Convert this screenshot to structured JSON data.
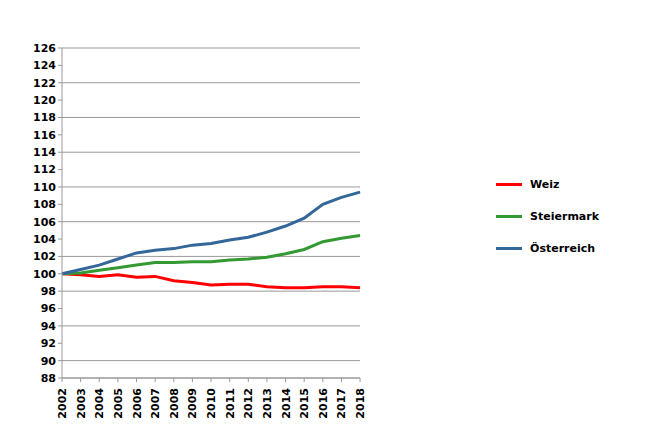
{
  "chart_data": {
    "type": "line",
    "categories": [
      "2002",
      "2003",
      "2004",
      "2005",
      "2006",
      "2007",
      "2008",
      "2009",
      "2010",
      "2011",
      "2012",
      "2013",
      "2014",
      "2015",
      "2016",
      "2017",
      "2018"
    ],
    "series": [
      {
        "name": "Weiz",
        "color": "#ff0000",
        "values": [
          100,
          99.9,
          99.7,
          99.9,
          99.6,
          99.7,
          99.2,
          99.0,
          98.7,
          98.8,
          98.8,
          98.5,
          98.4,
          98.4,
          98.5,
          98.5,
          98.4
        ]
      },
      {
        "name": "Steiermark",
        "color": "#339933",
        "values": [
          100,
          100.1,
          100.4,
          100.7,
          101.0,
          101.3,
          101.3,
          101.4,
          101.4,
          101.6,
          101.7,
          101.9,
          102.3,
          102.8,
          103.7,
          104.1,
          104.4
        ]
      },
      {
        "name": "Österreich",
        "color": "#336699",
        "values": [
          100,
          100.5,
          101.0,
          101.7,
          102.4,
          102.7,
          102.9,
          103.3,
          103.5,
          103.9,
          104.2,
          104.8,
          105.5,
          106.4,
          108.0,
          108.8,
          109.4
        ]
      }
    ],
    "ylim": [
      88,
      126
    ],
    "yticks": [
      88,
      90,
      92,
      94,
      96,
      98,
      100,
      102,
      104,
      106,
      108,
      110,
      112,
      114,
      116,
      118,
      120,
      122,
      124,
      126
    ],
    "grid": true,
    "legend": "right"
  }
}
